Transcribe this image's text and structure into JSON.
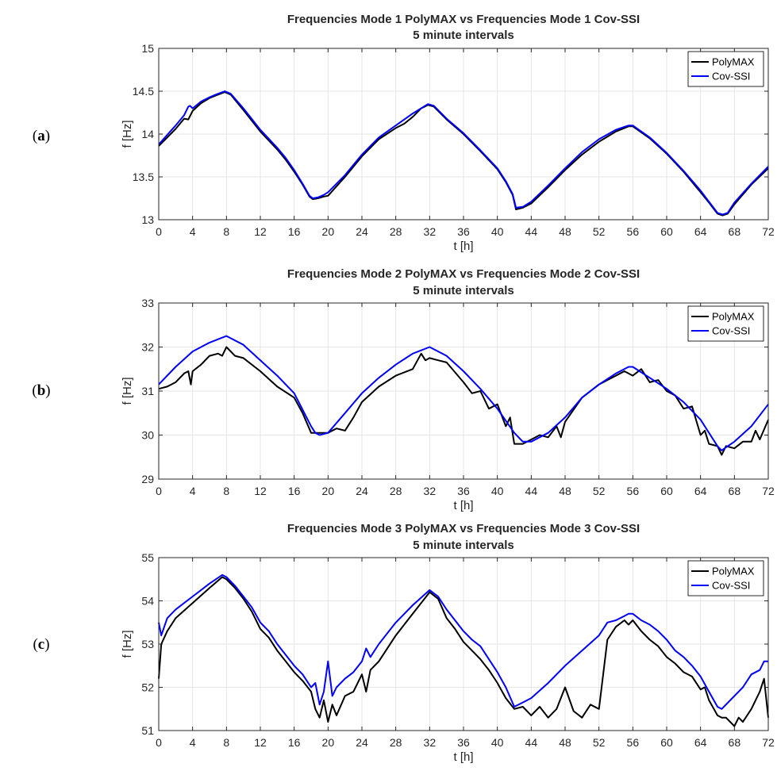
{
  "series_colors": {
    "PolyMAX": "#000000",
    "Cov-SSI": "#0000ff"
  },
  "chart_data": [
    {
      "type": "line",
      "panel_label": [
        "(",
        "a",
        ")"
      ],
      "title": "Frequencies Mode 1 PolyMAX vs Frequencies Mode 1 Cov-SSI",
      "subtitle": "5 minute intervals",
      "xlabel": "t [h]",
      "ylabel": "f [Hz]",
      "xlim": [
        0,
        72
      ],
      "ylim": [
        13,
        15
      ],
      "xticks": [
        "0",
        "4",
        "8",
        "12",
        "16",
        "20",
        "24",
        "28",
        "32",
        "36",
        "40",
        "44",
        "48",
        "52",
        "56",
        "60",
        "64",
        "68",
        "72"
      ],
      "yticks": [
        "13",
        "13.5",
        "14",
        "14.5",
        "15"
      ],
      "grid": true,
      "legend_position": "top-right",
      "series": [
        {
          "name": "PolyMAX",
          "color": "#000000",
          "x": [
            0,
            1,
            2,
            3,
            3.5,
            4,
            5,
            6,
            7,
            7.8,
            8.5,
            10,
            12,
            14,
            15,
            16,
            17,
            17.8,
            18.2,
            18.8,
            19.5,
            20,
            22,
            24,
            26,
            28,
            29,
            30,
            31,
            31.8,
            32.5,
            34,
            36,
            38,
            40,
            41,
            41.8,
            42.2,
            43,
            44,
            46,
            48,
            50,
            52,
            54,
            55.5,
            56,
            58,
            60,
            62,
            64,
            65,
            66,
            66.6,
            67.2,
            68,
            70,
            72
          ],
          "y": [
            13.86,
            13.96,
            14.06,
            14.18,
            14.17,
            14.27,
            14.36,
            14.42,
            14.46,
            14.49,
            14.46,
            14.28,
            14.03,
            13.82,
            13.7,
            13.56,
            13.41,
            13.27,
            13.24,
            13.25,
            13.27,
            13.28,
            13.5,
            13.74,
            13.94,
            14.07,
            14.12,
            14.2,
            14.3,
            14.34,
            14.32,
            14.17,
            14.0,
            13.8,
            13.59,
            13.44,
            13.29,
            13.12,
            13.14,
            13.19,
            13.38,
            13.58,
            13.76,
            13.91,
            14.03,
            14.09,
            14.09,
            13.95,
            13.77,
            13.56,
            13.32,
            13.2,
            13.07,
            13.05,
            13.07,
            13.18,
            13.41,
            13.6
          ]
        },
        {
          "name": "Cov-SSI",
          "color": "#0000ff",
          "x": [
            0,
            1,
            2,
            3,
            3.5,
            3.7,
            4,
            5,
            6,
            7,
            7.8,
            8.5,
            10,
            12,
            14,
            15,
            16,
            17,
            17.8,
            18.2,
            18.8,
            19.5,
            20,
            22,
            24,
            26,
            28,
            30,
            31.8,
            32.5,
            34,
            36,
            38,
            40,
            41,
            41.8,
            42.2,
            43,
            44,
            46,
            48,
            50,
            52,
            54,
            55.5,
            56,
            58,
            60,
            62,
            64,
            65,
            66,
            66.6,
            67.2,
            68,
            70,
            72
          ],
          "y": [
            13.88,
            13.99,
            14.1,
            14.22,
            14.32,
            14.33,
            14.3,
            14.38,
            14.43,
            14.47,
            14.5,
            14.47,
            14.3,
            14.05,
            13.84,
            13.72,
            13.58,
            13.42,
            13.28,
            13.25,
            13.26,
            13.29,
            13.32,
            13.52,
            13.76,
            13.96,
            14.1,
            14.24,
            14.35,
            14.33,
            14.18,
            14.01,
            13.81,
            13.6,
            13.45,
            13.3,
            13.14,
            13.15,
            13.21,
            13.4,
            13.6,
            13.79,
            13.94,
            14.05,
            14.1,
            14.1,
            13.96,
            13.78,
            13.57,
            13.34,
            13.21,
            13.08,
            13.06,
            13.08,
            13.2,
            13.42,
            13.62
          ]
        }
      ]
    },
    {
      "type": "line",
      "panel_label": [
        "(",
        "b",
        ")"
      ],
      "title": "Frequencies Mode 2 PolyMAX vs Frequencies Mode 2 Cov-SSI",
      "subtitle": "5 minute intervals",
      "xlabel": "t [h]",
      "ylabel": "f [Hz]",
      "xlim": [
        0,
        72
      ],
      "ylim": [
        29,
        33
      ],
      "xticks": [
        "0",
        "4",
        "8",
        "12",
        "16",
        "20",
        "24",
        "28",
        "32",
        "36",
        "40",
        "44",
        "48",
        "52",
        "56",
        "60",
        "64",
        "68",
        "72"
      ],
      "yticks": [
        "29",
        "30",
        "31",
        "32",
        "33"
      ],
      "grid": true,
      "legend_position": "top-right",
      "series": [
        {
          "name": "PolyMAX",
          "color": "#000000",
          "x": [
            0,
            1,
            2,
            3,
            3.5,
            3.8,
            4,
            5,
            6,
            7,
            7.5,
            8,
            9,
            10,
            12,
            14,
            16,
            17,
            18,
            19,
            20,
            21,
            22,
            23,
            24,
            26,
            28,
            30,
            31,
            31.5,
            32,
            33,
            34,
            36,
            37,
            38,
            39,
            40,
            41,
            41.5,
            42,
            43,
            44,
            45,
            46,
            47,
            47.5,
            48,
            50,
            52,
            54,
            55,
            56,
            57,
            58,
            59,
            60,
            61,
            62,
            63,
            64,
            64.5,
            65,
            66,
            66.5,
            67,
            68,
            69,
            70,
            70.5,
            71,
            72
          ],
          "y": [
            31.05,
            31.1,
            31.2,
            31.4,
            31.45,
            31.15,
            31.45,
            31.6,
            31.8,
            31.85,
            31.8,
            32.0,
            31.8,
            31.75,
            31.45,
            31.1,
            30.85,
            30.5,
            30.05,
            30.05,
            30.05,
            30.15,
            30.1,
            30.4,
            30.75,
            31.1,
            31.35,
            31.5,
            31.85,
            31.7,
            31.75,
            31.7,
            31.65,
            31.2,
            30.95,
            31.0,
            30.6,
            30.7,
            30.2,
            30.4,
            29.8,
            29.8,
            29.9,
            30.0,
            29.95,
            30.2,
            29.95,
            30.3,
            30.85,
            31.15,
            31.35,
            31.45,
            31.35,
            31.5,
            31.2,
            31.25,
            31.0,
            30.9,
            30.6,
            30.65,
            30.0,
            30.1,
            29.8,
            29.75,
            29.55,
            29.75,
            29.7,
            29.85,
            29.85,
            30.1,
            29.9,
            30.35
          ]
        },
        {
          "name": "Cov-SSI",
          "color": "#0000ff",
          "x": [
            0,
            2,
            4,
            6,
            8,
            10,
            12,
            14,
            16,
            18,
            18.5,
            19,
            20,
            22,
            24,
            26,
            28,
            30,
            32,
            34,
            36,
            38,
            40,
            42,
            43,
            44,
            46,
            48,
            50,
            52,
            54,
            55.5,
            56,
            58,
            60,
            62,
            64,
            65,
            66,
            66.5,
            67,
            68,
            70,
            72
          ],
          "y": [
            31.15,
            31.55,
            31.9,
            32.1,
            32.25,
            32.05,
            31.7,
            31.35,
            30.95,
            30.2,
            30.05,
            30.0,
            30.05,
            30.5,
            30.95,
            31.3,
            31.6,
            31.85,
            32.0,
            31.8,
            31.45,
            31.05,
            30.6,
            30.05,
            29.85,
            29.85,
            30.05,
            30.4,
            30.85,
            31.15,
            31.4,
            31.55,
            31.55,
            31.3,
            31.05,
            30.75,
            30.35,
            30.05,
            29.75,
            29.65,
            29.72,
            29.85,
            30.2,
            30.7
          ]
        }
      ]
    },
    {
      "type": "line",
      "panel_label": [
        "(",
        "c",
        ")"
      ],
      "title": "Frequencies Mode 3 PolyMAX vs Frequencies Mode 3 Cov-SSI",
      "subtitle": "5 minute intervals",
      "xlabel": "t [h]",
      "ylabel": "f [Hz]",
      "xlim": [
        0,
        72
      ],
      "ylim": [
        51,
        55
      ],
      "xticks": [
        "0",
        "4",
        "8",
        "12",
        "16",
        "20",
        "24",
        "28",
        "32",
        "36",
        "40",
        "44",
        "48",
        "52",
        "56",
        "60",
        "64",
        "68",
        "72"
      ],
      "yticks": [
        "51",
        "52",
        "53",
        "54",
        "55"
      ],
      "grid": true,
      "legend_position": "top-right",
      "series": [
        {
          "name": "PolyMAX",
          "color": "#000000",
          "x": [
            0,
            0.3,
            1,
            2,
            4,
            6,
            7.5,
            8,
            9,
            10,
            11,
            12,
            13,
            14,
            15,
            16,
            17,
            18,
            18.5,
            19,
            19.5,
            20,
            20.5,
            21,
            22,
            23,
            24,
            24.5,
            25,
            26,
            28,
            30,
            32,
            33,
            34,
            35,
            36,
            37,
            38,
            39,
            40,
            41,
            42,
            43,
            44,
            45,
            46,
            47,
            48,
            49,
            50,
            51,
            52,
            53,
            54,
            55,
            55.5,
            56,
            57,
            58,
            59,
            60,
            61,
            62,
            63,
            64,
            64.5,
            65,
            66,
            66.5,
            67,
            68,
            68.5,
            69,
            70,
            71,
            71.5,
            72
          ],
          "y": [
            52.2,
            53.0,
            53.3,
            53.6,
            53.95,
            54.3,
            54.55,
            54.5,
            54.3,
            54.05,
            53.75,
            53.35,
            53.15,
            52.85,
            52.6,
            52.35,
            52.15,
            51.9,
            51.5,
            51.3,
            51.7,
            51.2,
            51.6,
            51.35,
            51.8,
            51.9,
            52.3,
            51.9,
            52.4,
            52.6,
            53.2,
            53.7,
            54.2,
            54.05,
            53.6,
            53.35,
            53.05,
            52.85,
            52.65,
            52.4,
            52.1,
            51.75,
            51.5,
            51.55,
            51.35,
            51.55,
            51.3,
            51.5,
            52.0,
            51.45,
            51.3,
            51.6,
            51.5,
            53.1,
            53.4,
            53.55,
            53.45,
            53.55,
            53.3,
            53.1,
            52.95,
            52.7,
            52.55,
            52.35,
            52.25,
            51.95,
            52.0,
            51.7,
            51.35,
            51.3,
            51.3,
            51.1,
            51.3,
            51.2,
            51.5,
            51.9,
            52.2,
            51.3
          ]
        },
        {
          "name": "Cov-SSI",
          "color": "#0000ff",
          "x": [
            0,
            0.3,
            1,
            2,
            4,
            6,
            7.5,
            8,
            9,
            10,
            11,
            12,
            13,
            14,
            15,
            16,
            17,
            18,
            18.5,
            19,
            19.5,
            20,
            20.5,
            21,
            22,
            23,
            24,
            24.5,
            25,
            26,
            28,
            30,
            32,
            33,
            34,
            35,
            36,
            37,
            38,
            39,
            40,
            41,
            42,
            43,
            44,
            46,
            48,
            50,
            52,
            53,
            54,
            55,
            55.5,
            56,
            57,
            58,
            59,
            60,
            61,
            62,
            63,
            64,
            65,
            66,
            66.5,
            67,
            68,
            69,
            70,
            71,
            71.5,
            72
          ],
          "y": [
            53.5,
            53.2,
            53.6,
            53.8,
            54.1,
            54.4,
            54.6,
            54.55,
            54.35,
            54.1,
            53.85,
            53.5,
            53.3,
            53.0,
            52.75,
            52.5,
            52.3,
            52.0,
            52.1,
            51.6,
            51.9,
            52.6,
            51.8,
            52.0,
            52.2,
            52.35,
            52.6,
            52.9,
            52.7,
            53.0,
            53.5,
            53.9,
            54.25,
            54.1,
            53.8,
            53.55,
            53.3,
            53.1,
            52.95,
            52.65,
            52.35,
            52.0,
            51.55,
            51.65,
            51.75,
            52.1,
            52.5,
            52.85,
            53.2,
            53.5,
            53.55,
            53.65,
            53.7,
            53.7,
            53.55,
            53.45,
            53.3,
            53.1,
            52.85,
            52.7,
            52.5,
            52.25,
            51.9,
            51.55,
            51.5,
            51.6,
            51.8,
            52.0,
            52.3,
            52.4,
            52.6,
            52.6
          ]
        }
      ]
    }
  ]
}
